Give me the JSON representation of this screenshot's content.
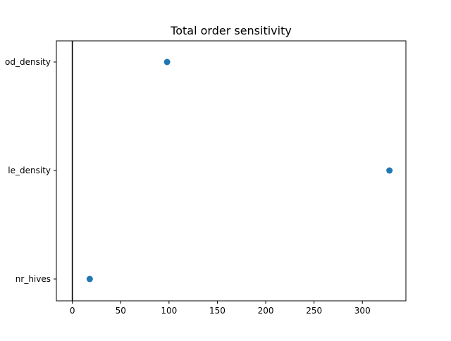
{
  "chart_data": {
    "type": "scatter",
    "title": "Total order sensitivity",
    "xlabel": "",
    "ylabel": "",
    "categories": [
      "nr_hives",
      "flower_patch_density",
      "brood_density"
    ],
    "tick_labels": [
      "nr_hives",
      "le_density",
      "od_density"
    ],
    "points": [
      {
        "category": "brood_density",
        "x": 98
      },
      {
        "category": "flower_patch_density",
        "x": 328
      },
      {
        "category": "nr_hives",
        "x": 18
      }
    ],
    "xlim": [
      -16.5,
      345
    ],
    "xticks": [
      0,
      50,
      100,
      150,
      200,
      250,
      300
    ],
    "reference_line_x": 0,
    "colors": {
      "marker": "#1f77b4",
      "reference_line": "#000000",
      "axes": "#000000"
    },
    "grid": false,
    "legend": "none"
  }
}
